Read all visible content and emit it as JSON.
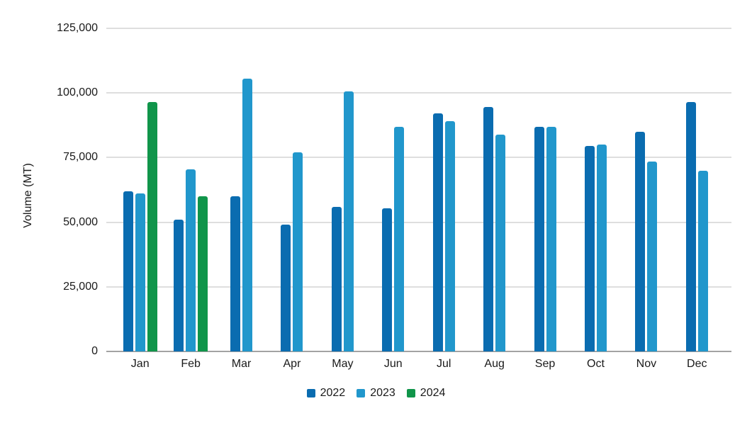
{
  "chart_data": {
    "type": "bar",
    "title": "",
    "xlabel": "",
    "ylabel": "Volume (MT)",
    "ylim": [
      0,
      125000
    ],
    "grid": true,
    "legend_position": "bottom",
    "y_tick_values": [
      0,
      25000,
      50000,
      75000,
      100000,
      125000
    ],
    "y_tick_labels": [
      "0",
      "25,000",
      "50,000",
      "75,000",
      "100,000",
      "125,000"
    ],
    "categories": [
      "Jan",
      "Feb",
      "Mar",
      "Apr",
      "May",
      "Jun",
      "Jul",
      "Aug",
      "Sep",
      "Oct",
      "Nov",
      "Dec"
    ],
    "series": [
      {
        "name": "2022",
        "color": "#0a6cb0",
        "values": [
          62000,
          51000,
          60000,
          49000,
          56000,
          55500,
          92000,
          94500,
          87000,
          79500,
          85000,
          96500
        ]
      },
      {
        "name": "2023",
        "color": "#2197cc",
        "values": [
          61000,
          70500,
          105500,
          77000,
          100500,
          87000,
          89000,
          84000,
          87000,
          80000,
          73500,
          70000
        ]
      },
      {
        "name": "2024",
        "color": "#10954a",
        "values": [
          96500,
          60000,
          null,
          null,
          null,
          null,
          null,
          null,
          null,
          null,
          null,
          null
        ]
      }
    ]
  }
}
